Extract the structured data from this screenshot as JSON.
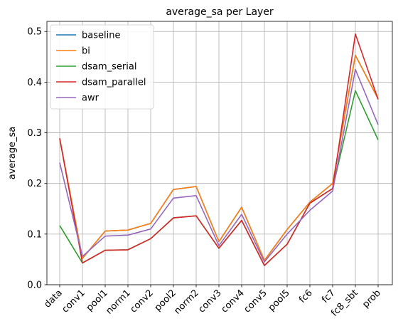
{
  "chart_data": {
    "type": "line",
    "title": "average_sa per Layer",
    "xlabel": "",
    "ylabel": "average_sa",
    "ylim": [
      0.0,
      0.52
    ],
    "yticks": [
      0.0,
      0.1,
      0.2,
      0.3,
      0.4,
      0.5
    ],
    "ytick_labels": [
      "0.0",
      "0.1",
      "0.2",
      "0.3",
      "0.4",
      "0.5"
    ],
    "grid": true,
    "legend_position": "top-left",
    "categories": [
      "data",
      "conv1",
      "pool1",
      "norm1",
      "conv2",
      "pool2",
      "norm2",
      "conv3",
      "conv4",
      "conv5",
      "pool5",
      "fc6",
      "fc7",
      "fc8_sbt",
      "prob"
    ],
    "series": [
      {
        "name": "baseline",
        "color": "#1f77b4",
        "values": [
          0.289,
          0.052,
          0.106,
          0.108,
          0.121,
          0.188,
          0.194,
          0.085,
          0.153,
          0.048,
          0.109,
          0.163,
          0.2,
          0.453,
          0.367
        ]
      },
      {
        "name": "bi",
        "color": "#ff7f0e",
        "values": [
          0.289,
          0.052,
          0.106,
          0.108,
          0.121,
          0.188,
          0.194,
          0.085,
          0.153,
          0.048,
          0.109,
          0.163,
          0.2,
          0.453,
          0.367
        ]
      },
      {
        "name": "dsam_serial",
        "color": "#2ca02c",
        "values": [
          0.117,
          0.043,
          0.068,
          0.069,
          0.091,
          0.132,
          0.136,
          0.072,
          0.127,
          0.038,
          0.08,
          0.161,
          0.19,
          0.383,
          0.286
        ]
      },
      {
        "name": "dsam_parallel",
        "color": "#d62728",
        "values": [
          0.289,
          0.043,
          0.068,
          0.069,
          0.091,
          0.132,
          0.136,
          0.072,
          0.127,
          0.038,
          0.08,
          0.161,
          0.19,
          0.495,
          0.366
        ]
      },
      {
        "name": "awr",
        "color": "#9467bd",
        "values": [
          0.241,
          0.056,
          0.096,
          0.098,
          0.11,
          0.171,
          0.176,
          0.077,
          0.139,
          0.045,
          0.1,
          0.147,
          0.185,
          0.425,
          0.316
        ]
      }
    ]
  }
}
